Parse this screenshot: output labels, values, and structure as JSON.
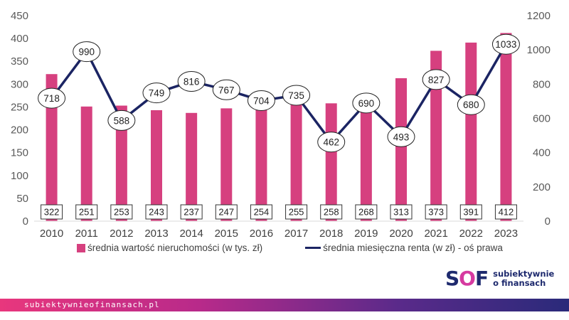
{
  "chart_data": {
    "type": "bar+line",
    "categories": [
      "2010",
      "2011",
      "2012",
      "2013",
      "2014",
      "2015",
      "2016",
      "2017",
      "2018",
      "2019",
      "2020",
      "2021",
      "2022",
      "2023"
    ],
    "series": [
      {
        "name": "średnia wartość nieruchomości (w tys. zł)",
        "type": "bar",
        "axis": "left",
        "color": "#d6407f",
        "values": [
          322,
          251,
          253,
          243,
          237,
          247,
          254,
          255,
          258,
          268,
          313,
          373,
          391,
          412
        ]
      },
      {
        "name": "średnia miesięczna renta (w zł) - oś prawa",
        "type": "line",
        "axis": "right",
        "color": "#1b2463",
        "values": [
          718,
          990,
          588,
          749,
          816,
          767,
          704,
          735,
          462,
          690,
          493,
          827,
          680,
          1033
        ]
      }
    ],
    "y_left": {
      "min": 0,
      "max": 450,
      "ticks": [
        0,
        50,
        100,
        150,
        200,
        250,
        300,
        350,
        400,
        450
      ]
    },
    "y_right": {
      "min": 0,
      "max": 1200,
      "ticks": [
        0,
        200,
        400,
        600,
        800,
        1000,
        1200
      ]
    },
    "legend_position": "bottom"
  },
  "legend": {
    "bar_label": "średnia wartość nieruchomości (w tys. zł)",
    "line_label": "średnia miesięczna renta (w zł) - oś prawa"
  },
  "logo": {
    "mark_s": "S",
    "mark_o": "O",
    "mark_f": "F",
    "line1": "subiektywnie",
    "line2": "o finansach"
  },
  "footer": {
    "url": "subiektywnieofinansach.pl"
  }
}
